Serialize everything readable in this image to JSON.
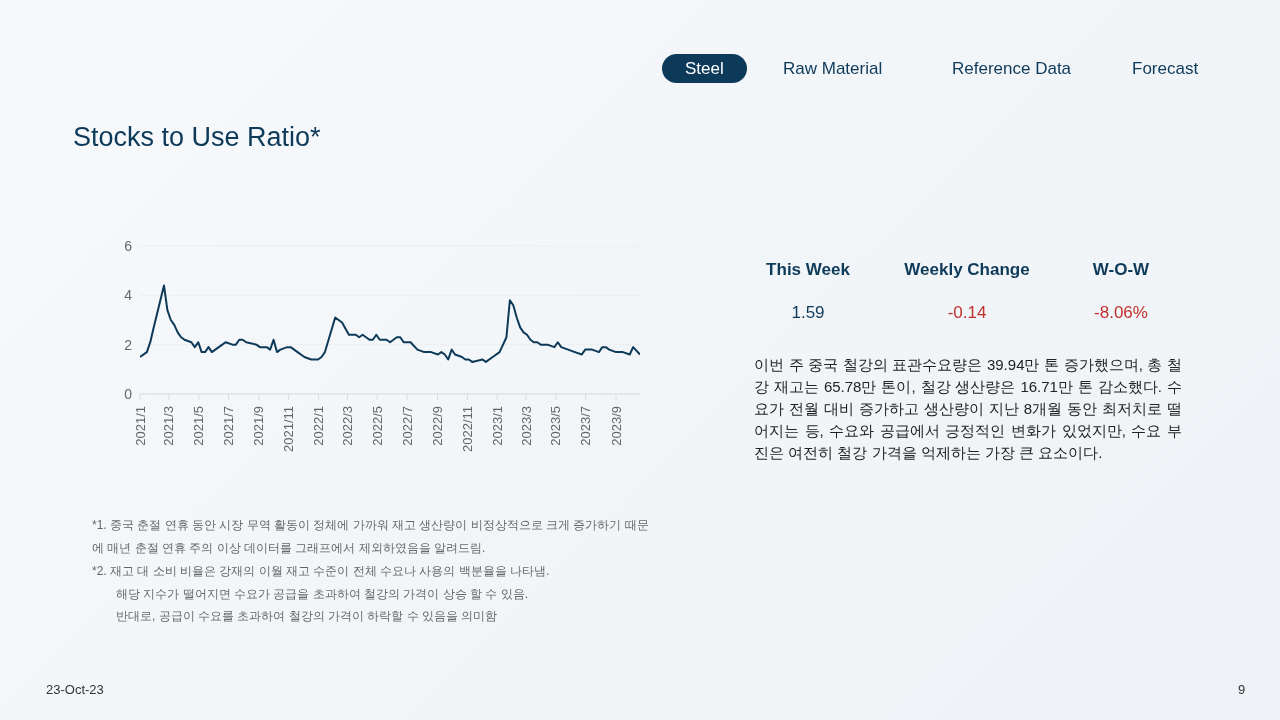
{
  "chart_data": [
    {
      "type": "line",
      "title": "Stocks to Use Ratio*",
      "x": [
        "2021-01-01",
        "2021-01-15",
        "2021-01-22",
        "2021-01-29",
        "2021-02-19",
        "2021-02-26",
        "2021-03-05",
        "2021-03-12",
        "2021-03-19",
        "2021-03-26",
        "2021-04-02",
        "2021-04-16",
        "2021-04-23",
        "2021-04-30",
        "2021-05-07",
        "2021-05-14",
        "2021-05-21",
        "2021-05-28",
        "2021-06-11",
        "2021-06-25",
        "2021-07-09",
        "2021-07-16",
        "2021-07-23",
        "2021-07-30",
        "2021-08-06",
        "2021-08-27",
        "2021-09-03",
        "2021-09-10",
        "2021-09-17",
        "2021-09-24",
        "2021-10-01",
        "2021-10-08",
        "2021-10-15",
        "2021-10-29",
        "2021-11-05",
        "2021-11-19",
        "2021-12-03",
        "2021-12-17",
        "2021-12-24",
        "2021-12-31",
        "2022-01-07",
        "2022-01-14",
        "2022-02-04",
        "2022-02-18",
        "2022-03-04",
        "2022-03-11",
        "2022-03-18",
        "2022-03-25",
        "2022-04-01",
        "2022-04-15",
        "2022-04-22",
        "2022-04-29",
        "2022-05-06",
        "2022-05-20",
        "2022-05-27",
        "2022-06-10",
        "2022-06-17",
        "2022-06-24",
        "2022-07-08",
        "2022-07-22",
        "2022-08-05",
        "2022-08-12",
        "2022-08-19",
        "2022-09-02",
        "2022-09-09",
        "2022-09-16",
        "2022-09-23",
        "2022-09-30",
        "2022-10-07",
        "2022-10-21",
        "2022-10-28",
        "2022-11-04",
        "2022-11-11",
        "2022-12-02",
        "2022-12-09",
        "2022-12-23",
        "2023-01-06",
        "2023-01-20",
        "2023-01-27",
        "2023-02-03",
        "2023-02-10",
        "2023-02-17",
        "2023-02-24",
        "2023-03-03",
        "2023-03-10",
        "2023-03-17",
        "2023-03-24",
        "2023-03-31",
        "2023-04-14",
        "2023-04-28",
        "2023-05-05",
        "2023-05-12",
        "2023-05-26",
        "2023-06-09",
        "2023-06-23",
        "2023-06-30",
        "2023-07-14",
        "2023-07-28",
        "2023-08-04",
        "2023-08-11",
        "2023-08-18",
        "2023-09-01",
        "2023-09-15",
        "2023-09-29",
        "2023-10-06",
        "2023-10-20"
      ],
      "series": [
        {
          "color": "#0e3a5a",
          "values": [
            1.5,
            1.7,
            2.1,
            2.7,
            4.4,
            3.4,
            3.0,
            2.8,
            2.5,
            2.3,
            2.2,
            2.1,
            1.9,
            2.1,
            1.7,
            1.7,
            1.9,
            1.7,
            1.9,
            2.1,
            2.0,
            2.0,
            2.2,
            2.2,
            2.1,
            2.0,
            1.9,
            1.9,
            1.9,
            1.8,
            2.2,
            1.7,
            1.8,
            1.9,
            1.9,
            1.7,
            1.5,
            1.4,
            1.4,
            1.4,
            1.5,
            1.7,
            3.1,
            2.9,
            2.4,
            2.4,
            2.4,
            2.3,
            2.4,
            2.2,
            2.2,
            2.4,
            2.2,
            2.2,
            2.1,
            2.3,
            2.3,
            2.1,
            2.1,
            1.8,
            1.7,
            1.7,
            1.7,
            1.6,
            1.7,
            1.6,
            1.4,
            1.8,
            1.6,
            1.5,
            1.4,
            1.4,
            1.3,
            1.4,
            1.3,
            1.5,
            1.7,
            2.3,
            3.8,
            3.6,
            3.1,
            2.7,
            2.5,
            2.4,
            2.2,
            2.1,
            2.1,
            2.0,
            2.0,
            1.9,
            2.1,
            1.9,
            1.8,
            1.7,
            1.6,
            1.8,
            1.8,
            1.7,
            1.9,
            1.9,
            1.8,
            1.7,
            1.7,
            1.6,
            1.9,
            1.6
          ]
        }
      ],
      "xlim": [
        "2021-01-01",
        "2023-10-20"
      ],
      "xticks": [
        {
          "value": "2021-01",
          "label": "2021/1"
        },
        {
          "value": "2021-03",
          "label": "2021/3"
        },
        {
          "value": "2021-05",
          "label": "2021/5"
        },
        {
          "value": "2021-07",
          "label": "2021/7"
        },
        {
          "value": "2021-09",
          "label": "2021/9"
        },
        {
          "value": "2021-11",
          "label": "2021/11"
        },
        {
          "value": "2022-01",
          "label": "2022/1"
        },
        {
          "value": "2022-03",
          "label": "2022/3"
        },
        {
          "value": "2022-05",
          "label": "2022/5"
        },
        {
          "value": "2022-07",
          "label": "2022/7"
        },
        {
          "value": "2022-09",
          "label": "2022/9"
        },
        {
          "value": "2022-11",
          "label": "2022/11"
        },
        {
          "value": "2023-01",
          "label": "2023/1"
        },
        {
          "value": "2023-03",
          "label": "2023/3"
        },
        {
          "value": "2023-05",
          "label": "2023/5"
        },
        {
          "value": "2023-07",
          "label": "2023/7"
        },
        {
          "value": "2023-09",
          "label": "2023/9"
        }
      ],
      "ylim": [
        0,
        6
      ],
      "yticks": [
        0,
        2,
        4,
        6
      ],
      "grid": "y",
      "legend": false,
      "marker": "none",
      "line_style": "solid",
      "annotations": [
        "Steel",
        "Raw Material",
        "Reference Data",
        "Forecast",
        "*1. 중국 춘절 연휴 동안 시장 무역 활동이 정체에 가까워 재고 생산량이 비정상적으로 크게 증가하기 때문에 매년 춘절 연휴 주의 이상 데이터를 그래프에서 제외하였음을 알려드림.",
        "*2. 재고 대 소비 비율은 강재의 이월 재고 수준이 전체 수요나 사용의 백분율을 나타냄.",
        "해당 지수가 떨어지면 수요가 공급을 초과하여 철강의 가격이 상승 할 수 있음.",
        "반대로, 공급이 수요를 초과하여 철강의 가격이 하락할 수 있음을 의미함",
        "23-Oct-23",
        "9"
      ]
    },
    {
      "type": "other",
      "categories": [
        "This Week",
        "Weekly Change",
        "W-O-W"
      ],
      "value_labels": [
        "1.59",
        "-0.14",
        "-8.06%"
      ],
      "colors": [
        "#0e3a5a",
        "#c0302b",
        "#c0302b"
      ],
      "annotations": [
        "이번 주 중국 철강의 표관수요량은 39.94만 톤 증가했으며, 총 철강 재고는 65.78만 톤이, 철강 생산량은 16.71만 톤 감소했다. 수요가 전월 대비 증가하고 생산량이 지난 8개월 동안 최저치로 떨어지는 등, 수요와 공급에서 긍정적인 변화가 있었지만, 수요 부진은 여전히 철강 가격을 억제하는 가장 큰 요소이다."
      ]
    }
  ]
}
